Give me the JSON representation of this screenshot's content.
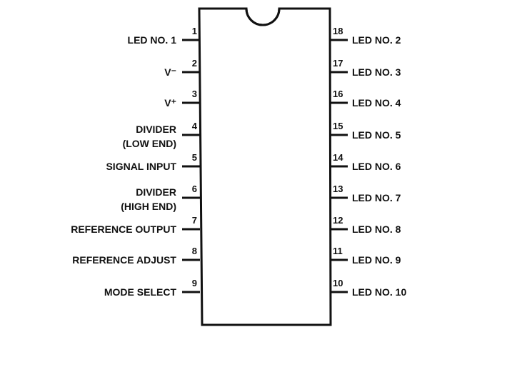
{
  "left_pins": [
    {
      "number": "1",
      "lines": [
        "LED NO. 1"
      ]
    },
    {
      "number": "2",
      "lines": [
        "V⁻"
      ]
    },
    {
      "number": "3",
      "lines": [
        "V⁺"
      ]
    },
    {
      "number": "4",
      "lines": [
        "DIVIDER",
        "(LOW END)"
      ]
    },
    {
      "number": "5",
      "lines": [
        "SIGNAL INPUT"
      ]
    },
    {
      "number": "6",
      "lines": [
        "DIVIDER",
        "(HIGH END)"
      ]
    },
    {
      "number": "7",
      "lines": [
        "REFERENCE OUTPUT"
      ]
    },
    {
      "number": "8",
      "lines": [
        "REFERENCE ADJUST"
      ]
    },
    {
      "number": "9",
      "lines": [
        "MODE SELECT"
      ]
    }
  ],
  "right_pins": [
    {
      "number": "18",
      "lines": [
        "LED NO. 2"
      ]
    },
    {
      "number": "17",
      "lines": [
        "LED NO. 3"
      ]
    },
    {
      "number": "16",
      "lines": [
        "LED NO. 4"
      ]
    },
    {
      "number": "15",
      "lines": [
        "LED NO. 5"
      ]
    },
    {
      "number": "14",
      "lines": [
        "LED NO. 6"
      ]
    },
    {
      "number": "13",
      "lines": [
        "LED NO. 7"
      ]
    },
    {
      "number": "12",
      "lines": [
        "LED NO. 8"
      ]
    },
    {
      "number": "11",
      "lines": [
        "LED NO. 9"
      ]
    },
    {
      "number": "10",
      "lines": [
        "LED NO. 10"
      ]
    }
  ]
}
